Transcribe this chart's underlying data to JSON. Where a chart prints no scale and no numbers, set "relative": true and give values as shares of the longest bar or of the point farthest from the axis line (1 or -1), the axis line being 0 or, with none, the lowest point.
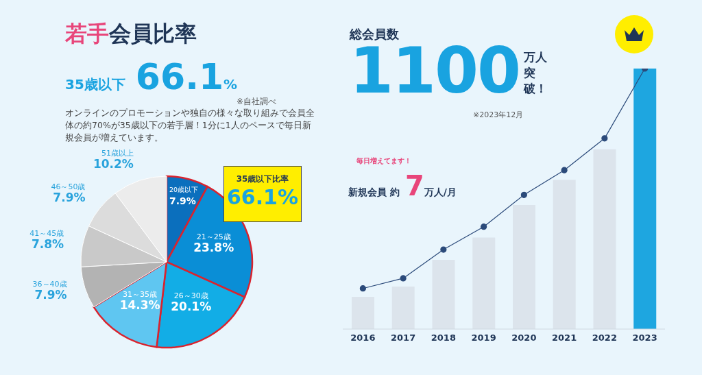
{
  "chart_data": [
    {
      "type": "pie",
      "title": "若手会員比率",
      "subtitle": "35歳以下 66.1%",
      "categories": [
        "20歳以下",
        "21～25歳",
        "26～30歳",
        "31～35歳",
        "36～40歳",
        "41～45歳",
        "46～50歳",
        "51歳以上"
      ],
      "values": [
        7.9,
        23.8,
        20.1,
        14.3,
        7.9,
        7.8,
        7.9,
        10.2
      ],
      "value_labels": [
        "7.9%",
        "23.8%",
        "20.1%",
        "14.3%",
        "7.9%",
        "7.8%",
        "7.9%",
        "10.2%"
      ],
      "colors": [
        "#0b6fbd",
        "#0a8ed6",
        "#12ade6",
        "#5fc6f1",
        "#b3b3b3",
        "#c9c9c9",
        "#dcdcdc",
        "#ececec"
      ],
      "annotations": [
        "※自社調べ",
        "オンラインのプロモーションや独自の様々な取り組みで会員全体の約70%が35歳以下の若手層！1分に1人のペースで毎日新規会員が増えています。",
        "35歳以下比率 66.1%"
      ],
      "legend": false
    },
    {
      "type": "bar",
      "title": "総会員数",
      "subtitle": "1100万人突破！",
      "relative": true,
      "categories": [
        "2016",
        "2017",
        "2018",
        "2019",
        "2020",
        "2021",
        "2022",
        "2023"
      ],
      "series": [
        {
          "type": "bar",
          "colors": [
            "#dce4ec",
            "#dce4ec",
            "#dce4ec",
            "#dce4ec",
            "#dce4ec",
            "#dce4ec",
            "#dce4ec",
            "#1ea6e0"
          ],
          "values": [
            0.124,
            0.163,
            0.266,
            0.351,
            0.476,
            0.573,
            0.69,
            1
          ]
        },
        {
          "type": "line",
          "color": "#2b4a7a",
          "values": [
            0.156,
            0.195,
            0.305,
            0.393,
            0.515,
            0.61,
            0.732,
            1
          ]
        }
      ],
      "marker": "circle",
      "line_style": "solid",
      "grid": false,
      "legend": false,
      "annotations": [
        "※2023年12月",
        "毎日増えてます！",
        "新規会員 約7万人/月"
      ]
    }
  ]
}
